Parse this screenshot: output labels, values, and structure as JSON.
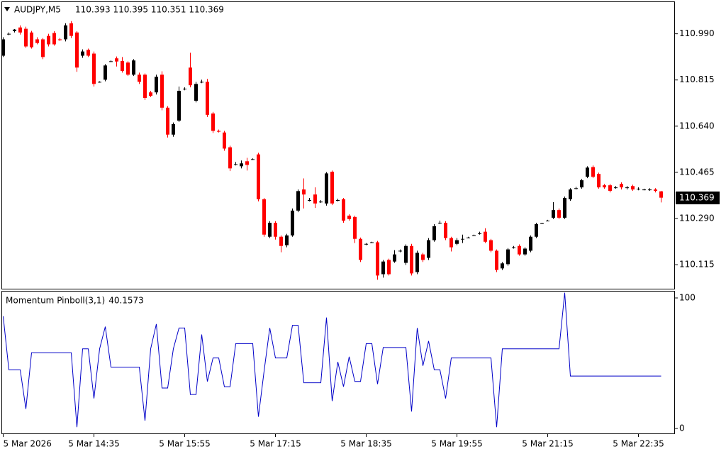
{
  "chart_data": [
    {
      "type": "candlestick",
      "title": "AUDJPY,M5",
      "subtitle": "110.393 110.395 110.351 110.369",
      "up_color": "#000000",
      "down_color": "#ff0000",
      "ylim": [
        110.024,
        111.11
      ],
      "yticks": [
        {
          "value": 110.99,
          "label": "110.990"
        },
        110.815,
        {
          "value": 110.64,
          "label": "110.640"
        },
        110.465,
        {
          "value": 110.29,
          "label": "110.290"
        },
        110.115
      ],
      "ohlc": [
        [
          110.907,
          110.977,
          110.902,
          110.969
        ],
        [
          110.99,
          110.995,
          110.985,
          110.99
        ],
        [
          111.0,
          111.008,
          110.995,
          111.006
        ],
        [
          111.014,
          111.022,
          110.987,
          110.995
        ],
        [
          111.009,
          111.017,
          110.937,
          110.942
        ],
        [
          110.995,
          111.001,
          110.934,
          110.939
        ],
        [
          110.969,
          110.977,
          110.95,
          110.955
        ],
        [
          110.969,
          110.974,
          110.894,
          110.902
        ],
        [
          110.982,
          110.99,
          110.942,
          110.95
        ],
        [
          110.993,
          111.0,
          110.945,
          110.95
        ],
        [
          110.969,
          110.974,
          110.963,
          110.966
        ],
        [
          110.969,
          111.03,
          110.961,
          111.022
        ],
        [
          111.03,
          111.038,
          110.974,
          110.982
        ],
        [
          110.995,
          111.0,
          110.846,
          110.862
        ],
        [
          110.907,
          110.931,
          110.899,
          110.923
        ],
        [
          110.929,
          110.934,
          110.902,
          110.907
        ],
        [
          110.915,
          110.923,
          110.79,
          110.8
        ],
        [
          110.808,
          110.81,
          110.805,
          110.808
        ],
        [
          110.816,
          110.875,
          110.81,
          110.87
        ],
        [
          110.886,
          110.889,
          110.883,
          110.886
        ],
        [
          110.897,
          110.904,
          110.866,
          110.885
        ],
        [
          110.887,
          110.902,
          110.843,
          110.849
        ],
        [
          110.881,
          110.886,
          110.83,
          110.835
        ],
        [
          110.835,
          110.894,
          110.83,
          110.889
        ],
        [
          110.835,
          110.843,
          110.8,
          110.808
        ],
        [
          110.835,
          110.84,
          110.739,
          110.747
        ],
        [
          110.768,
          110.774,
          110.75,
          110.755
        ],
        [
          110.768,
          110.835,
          110.76,
          110.827
        ],
        [
          110.835,
          110.848,
          110.7,
          110.71
        ],
        [
          110.71,
          110.716,
          110.597,
          110.608
        ],
        [
          110.608,
          110.654,
          110.6,
          110.648
        ],
        [
          110.661,
          110.79,
          110.656,
          110.774
        ],
        [
          110.782,
          110.787,
          110.776,
          110.782
        ],
        [
          110.862,
          110.918,
          110.787,
          110.795
        ],
        [
          110.736,
          110.808,
          110.73,
          110.8
        ],
        [
          110.808,
          110.816,
          110.803,
          110.808
        ],
        [
          110.808,
          110.819,
          110.675,
          110.683
        ],
        [
          110.688,
          110.694,
          110.614,
          110.622
        ],
        [
          110.622,
          110.627,
          110.616,
          110.619
        ],
        [
          110.616,
          110.622,
          110.547,
          110.555
        ],
        [
          110.56,
          110.566,
          110.47,
          110.48
        ],
        [
          110.496,
          110.504,
          110.491,
          110.496
        ],
        [
          110.488,
          110.51,
          110.48,
          110.499
        ],
        [
          110.507,
          110.52,
          110.472,
          110.493
        ],
        [
          110.515,
          110.518,
          110.512,
          110.515
        ],
        [
          110.533,
          110.539,
          110.355,
          110.363
        ],
        [
          110.363,
          110.368,
          110.221,
          110.229
        ],
        [
          110.221,
          110.28,
          110.216,
          110.274
        ],
        [
          110.274,
          110.28,
          110.21,
          110.221
        ],
        [
          110.221,
          110.226,
          110.162,
          110.186
        ],
        [
          110.189,
          110.232,
          110.181,
          110.226
        ],
        [
          110.226,
          110.328,
          110.221,
          110.32
        ],
        [
          110.32,
          110.4,
          110.314,
          110.394
        ],
        [
          110.4,
          110.442,
          110.328,
          110.381
        ],
        [
          110.36,
          110.368,
          110.355,
          110.36
        ],
        [
          110.381,
          110.408,
          110.33,
          110.347
        ],
        [
          110.354,
          110.36,
          110.349,
          110.354
        ],
        [
          110.347,
          110.466,
          110.339,
          110.461
        ],
        [
          110.467,
          110.472,
          110.341,
          110.347
        ],
        [
          110.36,
          110.365,
          110.355,
          110.36
        ],
        [
          110.363,
          110.368,
          110.274,
          110.282
        ],
        [
          110.301,
          110.306,
          110.282,
          110.288
        ],
        [
          110.296,
          110.301,
          110.197,
          110.213
        ],
        [
          110.213,
          110.218,
          110.125,
          110.133
        ],
        [
          110.194,
          110.197,
          110.189,
          110.194
        ],
        [
          110.2,
          110.202,
          110.197,
          110.2
        ],
        [
          110.2,
          110.205,
          110.058,
          110.074
        ],
        [
          110.079,
          110.133,
          110.066,
          110.127
        ],
        [
          110.133,
          110.138,
          110.074,
          110.079
        ],
        [
          110.127,
          110.17,
          110.122,
          110.154
        ],
        [
          110.168,
          110.173,
          110.162,
          110.168
        ],
        [
          110.122,
          110.192,
          110.114,
          110.186
        ],
        [
          110.186,
          110.194,
          110.074,
          110.082
        ],
        [
          110.087,
          110.168,
          110.079,
          110.16
        ],
        [
          110.154,
          110.16,
          110.125,
          110.133
        ],
        [
          110.141,
          110.216,
          110.133,
          110.208
        ],
        [
          110.208,
          110.269,
          110.202,
          110.261
        ],
        [
          110.274,
          110.282,
          110.269,
          110.274
        ],
        [
          110.274,
          110.28,
          110.208,
          110.216
        ],
        [
          110.216,
          110.221,
          110.165,
          110.181
        ],
        [
          110.194,
          110.216,
          110.189,
          110.208
        ],
        [
          110.213,
          110.229,
          110.197,
          110.213
        ],
        [
          110.218,
          110.221,
          110.216,
          110.218
        ],
        [
          110.226,
          110.229,
          110.224,
          110.226
        ],
        [
          110.234,
          110.24,
          110.229,
          110.234
        ],
        [
          110.24,
          110.253,
          110.197,
          110.202
        ],
        [
          110.208,
          110.213,
          110.162,
          110.168
        ],
        [
          110.168,
          110.173,
          110.087,
          110.095
        ],
        [
          110.101,
          110.125,
          110.095,
          110.12
        ],
        [
          110.117,
          110.178,
          110.111,
          110.173
        ],
        [
          110.181,
          110.186,
          110.176,
          110.181
        ],
        [
          110.186,
          110.192,
          110.149,
          110.154
        ],
        [
          110.154,
          110.181,
          110.149,
          110.176
        ],
        [
          110.168,
          110.226,
          110.162,
          110.221
        ],
        [
          110.221,
          110.274,
          110.216,
          110.269
        ],
        [
          110.272,
          110.274,
          110.269,
          110.272
        ],
        [
          110.282,
          110.285,
          110.28,
          110.282
        ],
        [
          110.293,
          110.352,
          110.288,
          110.322
        ],
        [
          110.322,
          110.328,
          110.288,
          110.293
        ],
        [
          110.293,
          110.373,
          110.288,
          110.368
        ],
        [
          110.363,
          110.405,
          110.357,
          110.4
        ],
        [
          110.405,
          110.41,
          110.4,
          110.405
        ],
        [
          110.408,
          110.44,
          110.403,
          110.435
        ],
        [
          110.448,
          110.488,
          110.443,
          110.483
        ],
        [
          110.485,
          110.491,
          110.443,
          110.448
        ],
        [
          110.459,
          110.464,
          110.403,
          110.408
        ],
        [
          110.416,
          110.421,
          110.403,
          110.408
        ],
        [
          110.416,
          110.421,
          110.389,
          110.395
        ],
        [
          110.408,
          110.413,
          110.403,
          110.408
        ],
        [
          110.421,
          110.427,
          110.4,
          110.408
        ],
        [
          110.408,
          110.413,
          110.4,
          110.408
        ],
        [
          110.413,
          110.418,
          110.395,
          110.4
        ],
        [
          110.403,
          110.408,
          110.397,
          110.403
        ],
        [
          110.4,
          110.403,
          110.397,
          110.4
        ],
        [
          110.4,
          110.405,
          110.395,
          110.4
        ],
        [
          110.4,
          110.405,
          110.389,
          110.395
        ],
        [
          110.393,
          110.395,
          110.351,
          110.369
        ]
      ]
    },
    {
      "type": "line",
      "ylim": [
        -3.8,
        104.9
      ],
      "yticks": [
        0,
        100
      ],
      "categories": [
        "5 Mar 2026",
        null,
        null,
        null,
        null,
        null,
        null,
        null,
        null,
        null,
        null,
        null,
        null,
        null,
        null,
        null,
        "5 Mar 14:35",
        null,
        null,
        null,
        null,
        null,
        null,
        null,
        null,
        null,
        null,
        null,
        null,
        null,
        null,
        null,
        "5 Mar 15:55",
        null,
        null,
        null,
        null,
        null,
        null,
        null,
        null,
        null,
        null,
        null,
        null,
        null,
        null,
        null,
        "5 Mar 17:15",
        null,
        null,
        null,
        null,
        null,
        null,
        null,
        null,
        null,
        null,
        null,
        null,
        null,
        null,
        null,
        "5 Mar 18:35",
        null,
        null,
        null,
        null,
        null,
        null,
        null,
        null,
        null,
        null,
        null,
        null,
        null,
        null,
        null,
        "5 Mar 19:55",
        null,
        null,
        null,
        null,
        null,
        null,
        null,
        null,
        null,
        null,
        null,
        null,
        null,
        null,
        null,
        "5 Mar 21:15",
        null,
        null,
        null,
        null,
        null,
        null,
        null,
        null,
        null,
        null,
        null,
        null,
        null,
        null,
        null,
        "5 Mar 22:35",
        null,
        null,
        null,
        null
      ],
      "series": [
        {
          "name": "Momentum Pinboll(3,1)",
          "color": "#0000c8",
          "values": [
            86,
            45,
            45,
            45,
            15,
            58,
            58,
            58,
            58,
            58,
            58,
            58,
            58,
            1,
            61,
            61,
            23,
            61,
            78,
            47,
            47,
            47,
            47,
            47,
            47,
            6,
            61,
            80,
            31,
            31,
            61,
            77,
            77,
            26,
            26,
            72,
            36,
            54,
            54,
            32,
            32,
            65,
            65,
            65,
            65,
            9,
            44,
            77,
            54,
            54,
            54,
            79,
            79,
            35,
            35,
            35,
            35,
            85,
            21,
            51,
            32,
            55,
            36,
            36,
            65,
            65,
            34,
            62,
            62,
            62,
            62,
            62,
            13,
            77,
            48,
            67,
            45,
            45,
            23,
            54,
            54,
            54,
            54,
            54,
            54,
            54,
            54,
            1,
            61,
            61,
            61,
            61,
            61,
            61,
            61,
            61,
            61,
            61,
            61,
            104,
            40.1573,
            40.1573,
            40.1573,
            40.1573,
            40.1573,
            40.1573,
            40.1573,
            40.1573,
            40.1573,
            40.1573,
            40.1573,
            40.1573,
            40.1573,
            40.1573,
            40.1573,
            40.1573,
            40.1573
          ]
        }
      ]
    }
  ]
}
